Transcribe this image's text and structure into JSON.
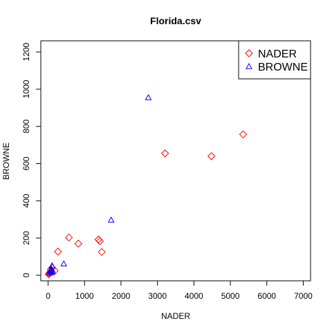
{
  "chart_data": {
    "type": "scatter",
    "title": "Florida.csv",
    "xlabel": "NADER",
    "ylabel": "BROWNE",
    "xlim": [
      -200,
      7200
    ],
    "ylim": [
      -30,
      1260
    ],
    "xticks": [
      0,
      1000,
      2000,
      3000,
      4000,
      5000,
      6000,
      7000
    ],
    "yticks": [
      0,
      200,
      400,
      600,
      800,
      1000,
      1200
    ],
    "legend_position": "top-right",
    "grid": false,
    "series": [
      {
        "name": "NADER",
        "marker": "diamond",
        "color": "#ff0000",
        "points": [
          [
            5350,
            757
          ],
          [
            4480,
            640
          ],
          [
            3210,
            655
          ],
          [
            1380,
            192
          ],
          [
            1420,
            183
          ],
          [
            1470,
            125
          ],
          [
            830,
            170
          ],
          [
            570,
            203
          ],
          [
            270,
            127
          ],
          [
            180,
            25
          ],
          [
            110,
            40
          ],
          [
            70,
            30
          ],
          [
            50,
            15
          ],
          [
            30,
            10
          ],
          [
            90,
            20
          ],
          [
            20,
            5
          ]
        ]
      },
      {
        "name": "BROWNE",
        "marker": "triangle",
        "color": "#0000ff",
        "points": [
          [
            2750,
            955
          ],
          [
            1730,
            297
          ],
          [
            430,
            62
          ],
          [
            110,
            52
          ],
          [
            90,
            35
          ],
          [
            70,
            30
          ],
          [
            60,
            25
          ],
          [
            80,
            20
          ],
          [
            100,
            15
          ],
          [
            120,
            22
          ],
          [
            40,
            12
          ]
        ]
      }
    ]
  }
}
